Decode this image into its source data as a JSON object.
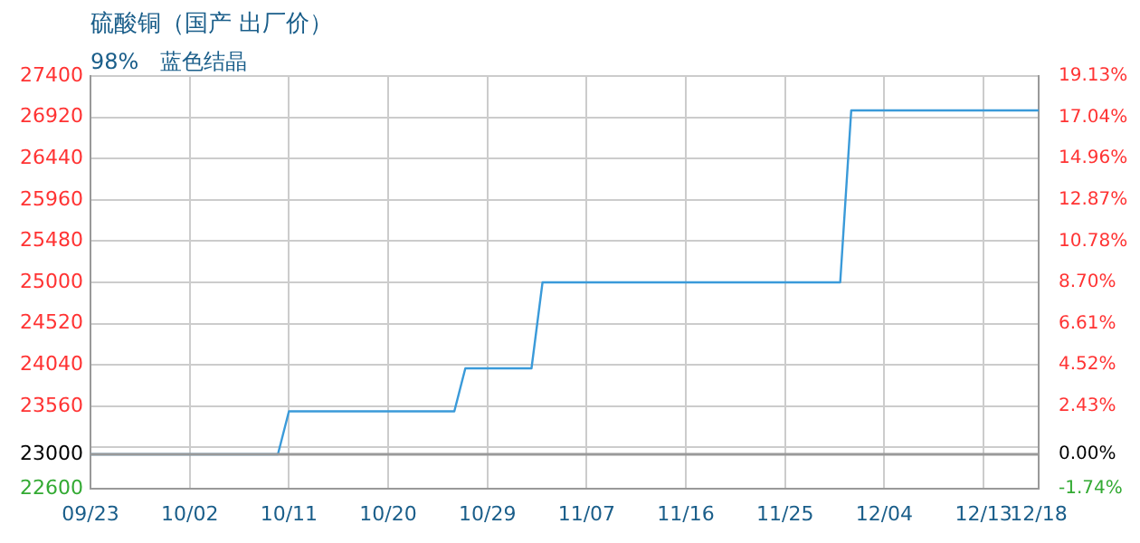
{
  "chart_data": {
    "type": "line",
    "title": "硫酸铜（国产 出厂价）",
    "subtitle": "98%　蓝色结晶",
    "x": [
      "--09-23",
      "--10-10",
      "--10-11",
      "--10-26",
      "--10-27",
      "--11-02",
      "--11-03",
      "--11-30",
      "--12-01",
      "--12-18"
    ],
    "series": [
      {
        "color": "#3a9ad9",
        "values": [
          23000,
          23000,
          23500,
          23500,
          24000,
          24000,
          25000,
          25000,
          27000,
          27000
        ]
      }
    ],
    "xlim": [
      "--09-23",
      "--12-18"
    ],
    "xticks": [
      {
        "value": "--09-23",
        "label": "09/23"
      },
      {
        "value": "--10-02",
        "label": "10/02"
      },
      {
        "value": "--10-11",
        "label": "10/11"
      },
      {
        "value": "--10-20",
        "label": "10/20"
      },
      {
        "value": "--10-29",
        "label": "10/29"
      },
      {
        "value": "--11-07",
        "label": "11/07"
      },
      {
        "value": "--11-16",
        "label": "11/16"
      },
      {
        "value": "--11-25",
        "label": "11/25"
      },
      {
        "value": "--12-04",
        "label": "12/04"
      },
      {
        "value": "--12-13",
        "label": "12/13"
      },
      {
        "value": "--12-18",
        "label": "12/18"
      }
    ],
    "ylim": [
      22600,
      27400
    ],
    "yticks": [
      22600,
      {
        "value": 23080,
        "label": null
      },
      23560,
      24040,
      24520,
      25000,
      25480,
      25960,
      26440,
      26920,
      27400
    ],
    "y2lim": [
      -1.74,
      19.13
    ],
    "y2ticks": [
      {
        "value": -1.74,
        "label": "-1.74%"
      },
      {
        "value": 0,
        "label": "0.00%"
      },
      {
        "value": 2.43,
        "label": "2.43%"
      },
      {
        "value": 4.52,
        "label": "4.52%"
      },
      {
        "value": 6.61,
        "label": "6.61%"
      },
      {
        "value": 8.7,
        "label": "8.70%"
      },
      {
        "value": 10.78,
        "label": "10.78%"
      },
      {
        "value": 12.87,
        "label": "12.87%"
      },
      {
        "value": 14.96,
        "label": "14.96%"
      },
      {
        "value": 17.04,
        "label": "17.04%"
      },
      {
        "value": 19.13,
        "label": "19.13%"
      }
    ],
    "ref_lines": [
      {
        "axis": "y",
        "value": 23000,
        "label": "23000",
        "color": "#999999"
      }
    ],
    "grid": true,
    "legend": false,
    "marker": "none",
    "line_style": "solid"
  }
}
